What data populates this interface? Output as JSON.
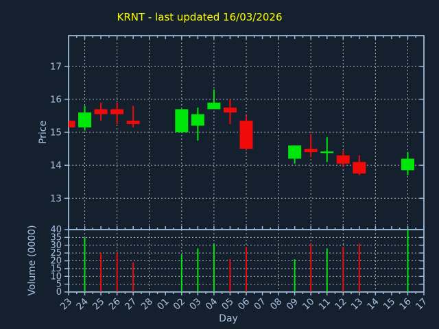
{
  "title": "KRNT - last updated 16/03/2026",
  "axes": {
    "x_title": "Day",
    "price_axis_title": "Price",
    "volume_axis_title": "Volume (0000)",
    "x_labels": [
      "23",
      "24",
      "25",
      "26",
      "27",
      "28",
      "01",
      "02",
      "03",
      "04",
      "05",
      "06",
      "07",
      "08",
      "09",
      "10",
      "11",
      "12",
      "13",
      "14",
      "15",
      "16",
      "17"
    ],
    "price_ticks": [
      "17",
      "16",
      "15",
      "14",
      "13"
    ],
    "volume_ticks": [
      "40",
      "35",
      "30",
      "25",
      "20",
      "15",
      "10",
      "5",
      "0"
    ]
  },
  "colors": {
    "background": "#15202e",
    "axis": "#9cb9d8",
    "grid": "#ccd2da",
    "tick_label": "#a9c4e4",
    "title": "#ffff00",
    "bullish": "#00e60a",
    "bearish": "#f00a0a"
  },
  "chart_data": [
    {
      "type": "candlestick",
      "panel": "price",
      "title": "KRNT - last updated 16/03/2026",
      "xlabel": "Day",
      "ylabel": "Price",
      "ylim": [
        12.05,
        17.93
      ],
      "grid": true,
      "x_labels": [
        "23",
        "24",
        "25",
        "26",
        "27",
        "28",
        "01",
        "02",
        "03",
        "04",
        "05",
        "06",
        "07",
        "08",
        "09",
        "10",
        "11",
        "12",
        "13",
        "14",
        "15",
        "16",
        "17"
      ],
      "candles": [
        {
          "x": "23",
          "open": 15.35,
          "high": 15.35,
          "low": 15.15,
          "close": 15.15
        },
        {
          "x": "24",
          "open": 15.15,
          "high": 15.8,
          "low": 15.05,
          "close": 15.6
        },
        {
          "x": "25",
          "open": 15.7,
          "high": 15.9,
          "low": 15.35,
          "close": 15.55
        },
        {
          "x": "26",
          "open": 15.7,
          "high": 15.9,
          "low": 15.25,
          "close": 15.55
        },
        {
          "x": "27",
          "open": 15.35,
          "high": 15.8,
          "low": 15.15,
          "close": 15.25
        },
        {
          "x": "02",
          "open": 15.0,
          "high": 15.7,
          "low": 15.0,
          "close": 15.7
        },
        {
          "x": "03",
          "open": 15.2,
          "high": 15.75,
          "low": 14.75,
          "close": 15.55
        },
        {
          "x": "04",
          "open": 15.7,
          "high": 16.3,
          "low": 15.7,
          "close": 15.9
        },
        {
          "x": "05",
          "open": 15.75,
          "high": 16.0,
          "low": 15.25,
          "close": 15.6
        },
        {
          "x": "06",
          "open": 15.35,
          "high": 15.5,
          "low": 14.45,
          "close": 14.5
        },
        {
          "x": "09",
          "open": 14.2,
          "high": 14.6,
          "low": 14.05,
          "close": 14.6
        },
        {
          "x": "10",
          "open": 14.5,
          "high": 14.95,
          "low": 14.25,
          "close": 14.4
        },
        {
          "x": "11",
          "open": 14.4,
          "high": 14.85,
          "low": 14.1,
          "close": 14.42
        },
        {
          "x": "12",
          "open": 14.3,
          "high": 14.45,
          "low": 13.95,
          "close": 14.05
        },
        {
          "x": "13",
          "open": 14.1,
          "high": 14.3,
          "low": 13.7,
          "close": 13.75
        },
        {
          "x": "16",
          "open": 13.85,
          "high": 14.4,
          "low": 13.7,
          "close": 14.2
        }
      ]
    },
    {
      "type": "bar",
      "panel": "volume",
      "ylabel": "Volume (0000)",
      "ylim": [
        0,
        40
      ],
      "grid": true,
      "bars": [
        {
          "x": "24",
          "value": 35
        },
        {
          "x": "25",
          "value": 25
        },
        {
          "x": "26",
          "value": 25
        },
        {
          "x": "27",
          "value": 19
        },
        {
          "x": "02",
          "value": 24
        },
        {
          "x": "03",
          "value": 28
        },
        {
          "x": "04",
          "value": 31
        },
        {
          "x": "05",
          "value": 21
        },
        {
          "x": "06",
          "value": 29
        },
        {
          "x": "09",
          "value": 21
        },
        {
          "x": "10",
          "value": 31
        },
        {
          "x": "11",
          "value": 28
        },
        {
          "x": "12",
          "value": 29
        },
        {
          "x": "13",
          "value": 31
        },
        {
          "x": "16",
          "value": 40
        }
      ]
    }
  ]
}
